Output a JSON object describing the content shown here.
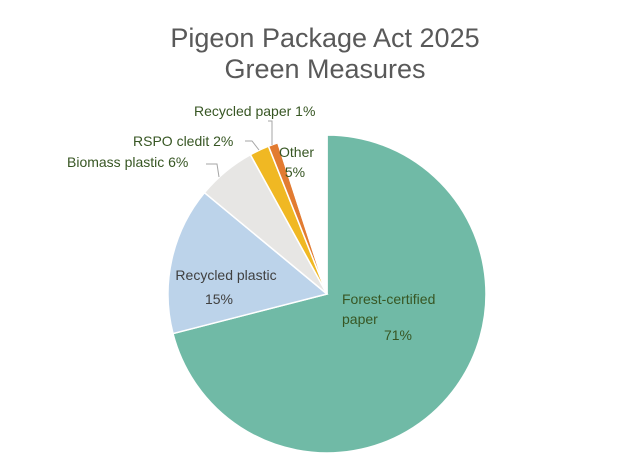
{
  "chart_data": {
    "type": "pie",
    "title": "Pigeon Package Act 2025",
    "subtitle": "Green Measures",
    "legend": "none",
    "start_angle_deg": 0,
    "direction": "clockwise",
    "slices": [
      {
        "name": "Forest-certified paper",
        "label_lines": [
          "Forest-certified",
          "paper"
        ],
        "pct_label": "71%",
        "value": 71,
        "color": "#70BAA6",
        "label_color": "#375623"
      },
      {
        "name": "Recycled plastic",
        "label_lines": [
          "Recycled plastic"
        ],
        "pct_label": "15%",
        "value": 15,
        "color": "#BCD3EA",
        "label_color": "#404040"
      },
      {
        "name": "Biomass plastic",
        "label_lines": [
          "Biomass plastic  6%"
        ],
        "pct_label": "",
        "value": 6,
        "color": "#E7E6E4",
        "label_color": "#375623"
      },
      {
        "name": "RSPO cledit",
        "label_lines": [
          "RSPO cledit  2%"
        ],
        "pct_label": "",
        "value": 2,
        "color": "#F0B823",
        "label_color": "#375623"
      },
      {
        "name": "Recycled paper",
        "label_lines": [
          "Recycled paper  1%"
        ],
        "pct_label": "",
        "value": 1,
        "color": "#E27B31",
        "label_color": "#375623"
      },
      {
        "name": "Other",
        "label_lines": [
          "Other"
        ],
        "pct_label": "5%",
        "value": 5,
        "color": "#FFFFFF",
        "label_color": "#375623"
      }
    ]
  }
}
